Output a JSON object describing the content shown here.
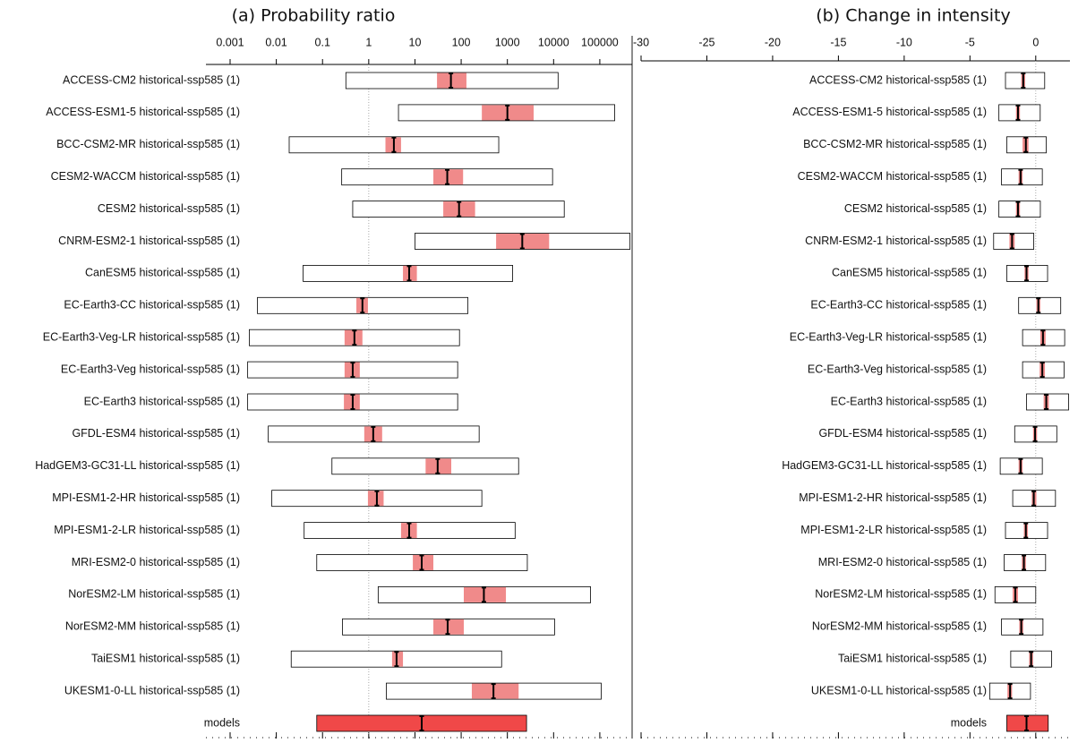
{
  "chart_data": [
    {
      "type": "interval",
      "title": "(a) Probability ratio",
      "log_scale": true,
      "xlim": [
        0.0003,
        500000
      ],
      "xticks": [
        0.001,
        0.01,
        0.1,
        1,
        10,
        100,
        1000,
        10000,
        100000
      ],
      "ref_line": 1,
      "box_color": "#ffffff",
      "ci_color": "#f08a8a",
      "summary_color": "#f04848",
      "categories": [
        "ACCESS-CM2 historical-ssp585 (1)",
        "ACCESS-ESM1-5 historical-ssp585 (1)",
        "BCC-CSM2-MR historical-ssp585 (1)",
        "CESM2-WACCM historical-ssp585 (1)",
        "CESM2 historical-ssp585 (1)",
        "CNRM-ESM2-1 historical-ssp585 (1)",
        "CanESM5 historical-ssp585 (1)",
        "EC-Earth3-CC historical-ssp585 (1)",
        "EC-Earth3-Veg-LR historical-ssp585 (1)",
        "EC-Earth3-Veg historical-ssp585 (1)",
        "EC-Earth3 historical-ssp585 (1)",
        "GFDL-ESM4 historical-ssp585 (1)",
        "HadGEM3-GC31-LL historical-ssp585 (1)",
        "MPI-ESM1-2-HR historical-ssp585 (1)",
        "MPI-ESM1-2-LR historical-ssp585 (1)",
        "MRI-ESM2-0 historical-ssp585 (1)",
        "NorESM2-LM historical-ssp585 (1)",
        "NorESM2-MM historical-ssp585 (1)",
        "TaiESM1 historical-ssp585 (1)",
        "UKESM1-0-LL historical-ssp585 (1)",
        "models"
      ],
      "low": [
        0.32,
        4.4,
        0.019,
        0.26,
        0.45,
        10,
        0.038,
        0.0039,
        0.0026,
        0.0024,
        0.0024,
        0.0067,
        0.16,
        0.008,
        0.04,
        0.075,
        1.6,
        0.27,
        0.021,
        2.4,
        0.075
      ],
      "high": [
        12500,
        210000,
        650,
        9500,
        17000,
        450000,
        1300,
        140,
        92,
        84,
        84,
        245,
        1750,
        280,
        1470,
        2700,
        63000,
        10500,
        750,
        107000,
        2600
      ],
      "ci_low": [
        30,
        280,
        2.3,
        25,
        41,
        570,
        5.5,
        0.54,
        0.3,
        0.3,
        0.29,
        0.8,
        17,
        0.96,
        5,
        9,
        114,
        25,
        3.2,
        170,
        null
      ],
      "ci_high": [
        130,
        3700,
        5,
        110,
        200,
        8000,
        11,
        0.96,
        0.73,
        0.64,
        0.64,
        1.95,
        61,
        2.1,
        11,
        25,
        930,
        114,
        5.5,
        1750,
        null
      ],
      "best": [
        60,
        1000,
        3.5,
        50,
        90,
        2100,
        7.5,
        0.73,
        0.49,
        0.45,
        0.45,
        1.25,
        31,
        1.5,
        7.5,
        14,
        310,
        51,
        4,
        500,
        14
      ]
    },
    {
      "type": "interval",
      "title": "(b) Change in intensity",
      "log_scale": false,
      "xlim": [
        -30,
        2.6
      ],
      "xticks": [
        -30,
        -25,
        -20,
        -15,
        -10,
        -5,
        0
      ],
      "ref_line": 0,
      "box_color": "#ffffff",
      "ci_color": "#f08a8a",
      "summary_color": "#f04848",
      "categories": [
        "ACCESS-CM2 historical-ssp585 (1)",
        "ACCESS-ESM1-5 historical-ssp585 (1)",
        "BCC-CSM2-MR historical-ssp585 (1)",
        "CESM2-WACCM historical-ssp585 (1)",
        "CESM2 historical-ssp585 (1)",
        "CNRM-ESM2-1 historical-ssp585 (1)",
        "CanESM5 historical-ssp585 (1)",
        "EC-Earth3-CC historical-ssp585 (1)",
        "EC-Earth3-Veg-LR historical-ssp585 (1)",
        "EC-Earth3-Veg historical-ssp585 (1)",
        "EC-Earth3 historical-ssp585 (1)",
        "GFDL-ESM4 historical-ssp585 (1)",
        "HadGEM3-GC31-LL historical-ssp585 (1)",
        "MPI-ESM1-2-HR historical-ssp585 (1)",
        "MPI-ESM1-2-LR historical-ssp585 (1)",
        "MRI-ESM2-0 historical-ssp585 (1)",
        "NorESM2-LM historical-ssp585 (1)",
        "NorESM2-MM historical-ssp585 (1)",
        "TaiESM1 historical-ssp585 (1)",
        "UKESM1-0-LL historical-ssp585 (1)",
        "models"
      ],
      "low": [
        -2.3,
        -2.8,
        -2.2,
        -2.6,
        -2.8,
        -3.2,
        -2.2,
        -1.3,
        -1.0,
        -1.0,
        -0.7,
        -1.6,
        -2.7,
        -1.75,
        -2.3,
        -2.4,
        -3.1,
        -2.6,
        -1.9,
        -3.5,
        -2.2
      ],
      "high": [
        0.68,
        0.34,
        0.8,
        0.5,
        0.35,
        -0.15,
        0.9,
        1.9,
        2.2,
        2.15,
        2.5,
        1.6,
        0.5,
        1.5,
        0.9,
        0.75,
        0,
        0.55,
        1.2,
        -0.4,
        0.95
      ],
      "ci_low": [
        -1.1,
        -1.5,
        -1.0,
        -1.3,
        -1.5,
        -2.0,
        -0.85,
        0.05,
        0.35,
        0.3,
        0.6,
        -0.2,
        -1.3,
        -0.3,
        -0.9,
        -1.05,
        -1.75,
        -1.25,
        -0.5,
        -2.15,
        null
      ],
      "ci_high": [
        -0.8,
        -1.2,
        -0.55,
        -1.0,
        -1.2,
        -1.6,
        -0.55,
        0.35,
        0.75,
        0.7,
        1.0,
        0.1,
        -1.0,
        0.05,
        -0.6,
        -0.75,
        -1.35,
        -0.95,
        -0.2,
        -1.8,
        null
      ],
      "best": [
        -0.95,
        -1.35,
        -0.75,
        -1.15,
        -1.35,
        -1.8,
        -0.7,
        0.2,
        0.55,
        0.5,
        0.8,
        -0.05,
        -1.15,
        -0.15,
        -0.75,
        -0.9,
        -1.55,
        -1.1,
        -0.35,
        -1.95,
        -0.7
      ]
    }
  ]
}
